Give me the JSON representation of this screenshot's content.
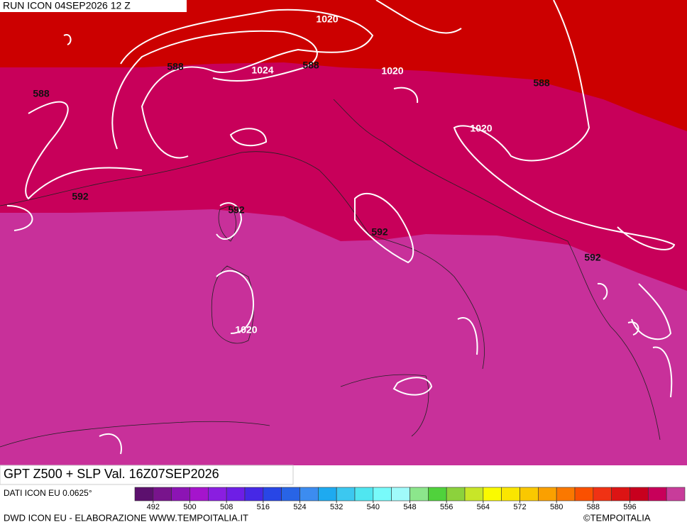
{
  "header": {
    "run": "RUN ICON 04SEP2026 12 Z"
  },
  "map": {
    "contour_labels": [
      1020,
      588,
      1024,
      588,
      1020,
      588,
      588,
      1020,
      592,
      592,
      592,
      592,
      1020
    ]
  },
  "footer": {
    "title": "GPT Z500 + SLP Val. 16Z07SEP2026",
    "data_source": "DATI ICON EU 0.0625°",
    "credit": "DWD ICON EU - ELABORAZIONE WWW.TEMPOITALIA.IT",
    "copyright": "©TEMPOITALIA"
  },
  "colorbar": {
    "lim": [
      488,
      608
    ],
    "ticks": [
      492,
      500,
      508,
      516,
      524,
      532,
      540,
      548,
      556,
      564,
      572,
      580,
      588,
      596
    ],
    "colors": [
      "#5c106e",
      "#78148c",
      "#8c14b4",
      "#a514cc",
      "#8a1ee0",
      "#6e1ee6",
      "#4628e6",
      "#2846e6",
      "#2864e6",
      "#3c8cf0",
      "#1eaaf0",
      "#3cc8f0",
      "#50e6f0",
      "#78fafa",
      "#a0fafa",
      "#8ce68c",
      "#50d23c",
      "#8cd23c",
      "#c8e628",
      "#fafa00",
      "#fae600",
      "#fac800",
      "#faa000",
      "#fa7800",
      "#fa5000",
      "#f03214",
      "#dc1414",
      "#c8001e",
      "#c8005a",
      "#c83c9a"
    ]
  }
}
